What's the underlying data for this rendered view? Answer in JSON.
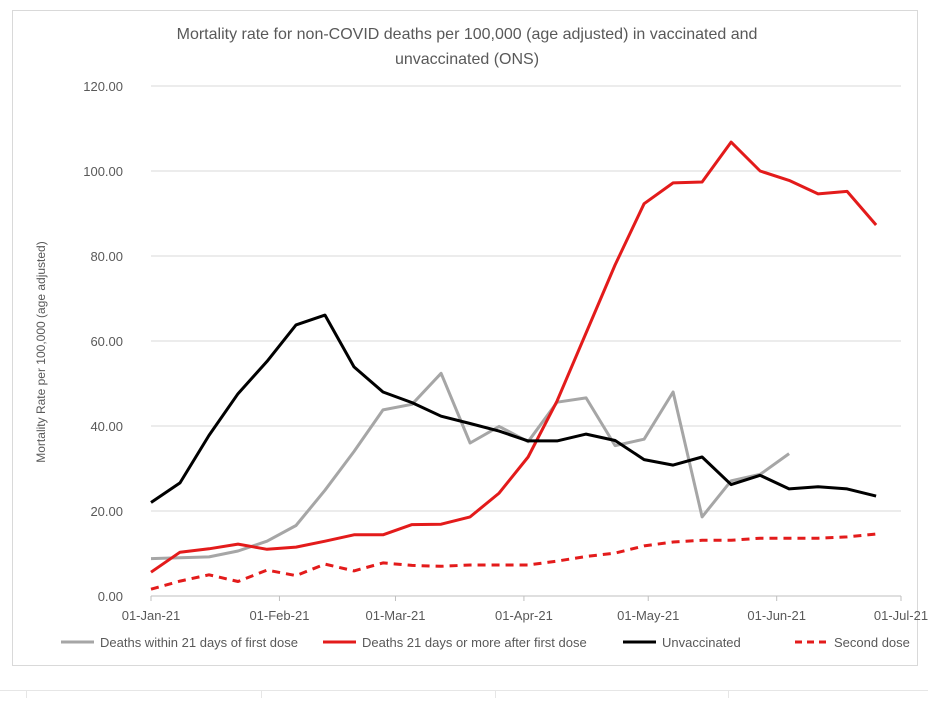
{
  "chart_data": {
    "type": "line",
    "title_lines": [
      "Mortality rate for non-COVID deaths per 100,000 (age adjusted) in vaccinated and",
      "unvaccinated (ONS)"
    ],
    "ylabel": "Mortality Rate per 100,000 (age adjusted)",
    "xlabel": "",
    "ylim": [
      0,
      120
    ],
    "y_ticks": [
      "0.00",
      "20.00",
      "40.00",
      "60.00",
      "80.00",
      "100.00",
      "120.00"
    ],
    "y_tick_values": [
      0,
      20,
      40,
      60,
      80,
      100,
      120
    ],
    "x_ticks": [
      "01-Jan-21",
      "01-Feb-21",
      "01-Mar-21",
      "01-Apr-21",
      "01-May-21",
      "01-Jun-21",
      "01-Jul-21"
    ],
    "x_tick_days": [
      0,
      31,
      59,
      90,
      120,
      151,
      181
    ],
    "xlim_days": [
      0,
      181
    ],
    "grid": "horizontal",
    "legend_position": "bottom",
    "series": [
      {
        "name": "Deaths within 21 days of first dose",
        "color": "#a6a6a6",
        "dash": "solid",
        "x_days": [
          0,
          7,
          14,
          21,
          28,
          35,
          42,
          49,
          56,
          63,
          70,
          77,
          84,
          91,
          98,
          105,
          112,
          119,
          126,
          133,
          140,
          147,
          154,
          161
        ],
        "values": [
          8.8,
          9.0,
          9.2,
          10.6,
          12.9,
          16.6,
          24.9,
          34.0,
          43.8,
          45.1,
          52.4,
          36.0,
          39.9,
          36.3,
          45.6,
          46.6,
          35.4,
          36.9,
          48.0,
          18.6,
          27.1,
          28.6,
          33.5,
          null
        ]
      },
      {
        "name": "Deaths 21 days or more after first dose",
        "color": "#e31b1b",
        "dash": "solid",
        "x_days": [
          0,
          7,
          14,
          21,
          28,
          35,
          42,
          49,
          56,
          63,
          70,
          77,
          84,
          91,
          98,
          105,
          112,
          119,
          126,
          133,
          140,
          147,
          154,
          161,
          168,
          175,
          181
        ],
        "values": [
          5.6,
          10.3,
          11.1,
          12.2,
          11.0,
          11.5,
          12.9,
          14.4,
          14.4,
          16.8,
          16.9,
          18.6,
          24.2,
          32.7,
          45.9,
          61.9,
          77.9,
          92.3,
          97.2,
          97.4,
          106.8,
          100.0,
          97.8,
          94.6,
          95.2,
          87.3,
          null
        ]
      },
      {
        "name": "Unvaccinated",
        "color": "#000000",
        "dash": "solid",
        "x_days": [
          0,
          7,
          14,
          21,
          28,
          35,
          42,
          49,
          56,
          63,
          70,
          77,
          84,
          91,
          98,
          105,
          112,
          119,
          126,
          133,
          140,
          147,
          154,
          161,
          168,
          175,
          181
        ],
        "values": [
          22.0,
          26.6,
          37.8,
          47.6,
          55.2,
          63.8,
          66.1,
          53.9,
          48.0,
          45.5,
          42.3,
          40.6,
          38.8,
          36.5,
          36.5,
          38.1,
          36.6,
          32.1,
          30.8,
          32.7,
          26.2,
          28.4,
          25.2,
          25.7,
          25.2,
          23.5,
          null
        ]
      },
      {
        "name": "Second dose",
        "color": "#e31b1b",
        "dash": "dashed",
        "x_days": [
          0,
          7,
          14,
          21,
          28,
          35,
          42,
          49,
          56,
          63,
          70,
          77,
          84,
          91,
          98,
          105,
          112,
          119,
          126,
          133,
          140,
          147,
          154,
          161,
          168,
          175,
          181
        ],
        "values": [
          1.6,
          3.5,
          5.0,
          3.4,
          6.1,
          4.8,
          7.5,
          5.9,
          7.8,
          7.2,
          7.0,
          7.3,
          7.3,
          7.3,
          8.2,
          9.3,
          10.1,
          11.8,
          12.7,
          13.1,
          13.1,
          13.6,
          13.6,
          13.6,
          13.9,
          14.6,
          null
        ]
      }
    ]
  }
}
